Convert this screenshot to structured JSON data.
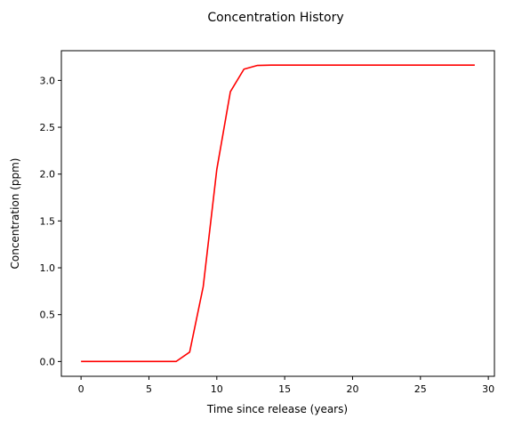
{
  "chart_data": {
    "type": "line",
    "title": "Concentration History",
    "xlabel": "Time since release (years)",
    "ylabel": "Concentration  (ppm)",
    "xlim": [
      -1.45,
      30.45
    ],
    "ylim": [
      -0.158,
      3.317
    ],
    "xticks": [
      0,
      5,
      10,
      15,
      20,
      25,
      30
    ],
    "xtick_labels": [
      "0",
      "5",
      "10",
      "15",
      "20",
      "25",
      "30"
    ],
    "yticks": [
      0.0,
      0.5,
      1.0,
      1.5,
      2.0,
      2.5,
      3.0
    ],
    "ytick_labels": [
      "0.0",
      "0.5",
      "1.0",
      "1.5",
      "2.0",
      "2.5",
      "3.0"
    ],
    "grid": false,
    "series": [
      {
        "color": "#ff0000",
        "x": [
          0,
          1,
          2,
          3,
          4,
          5,
          6,
          7,
          8,
          9,
          10,
          11,
          12,
          13,
          14,
          15,
          16,
          17,
          18,
          19,
          20,
          21,
          22,
          23,
          24,
          25,
          26,
          27,
          28,
          29
        ],
        "y": [
          0,
          0,
          0,
          0,
          0,
          0,
          0,
          0,
          0.1,
          0.8,
          2.05,
          2.88,
          3.12,
          3.16,
          3.163,
          3.163,
          3.163,
          3.163,
          3.163,
          3.163,
          3.163,
          3.163,
          3.163,
          3.163,
          3.163,
          3.163,
          3.163,
          3.163,
          3.163,
          3.163
        ]
      }
    ]
  }
}
